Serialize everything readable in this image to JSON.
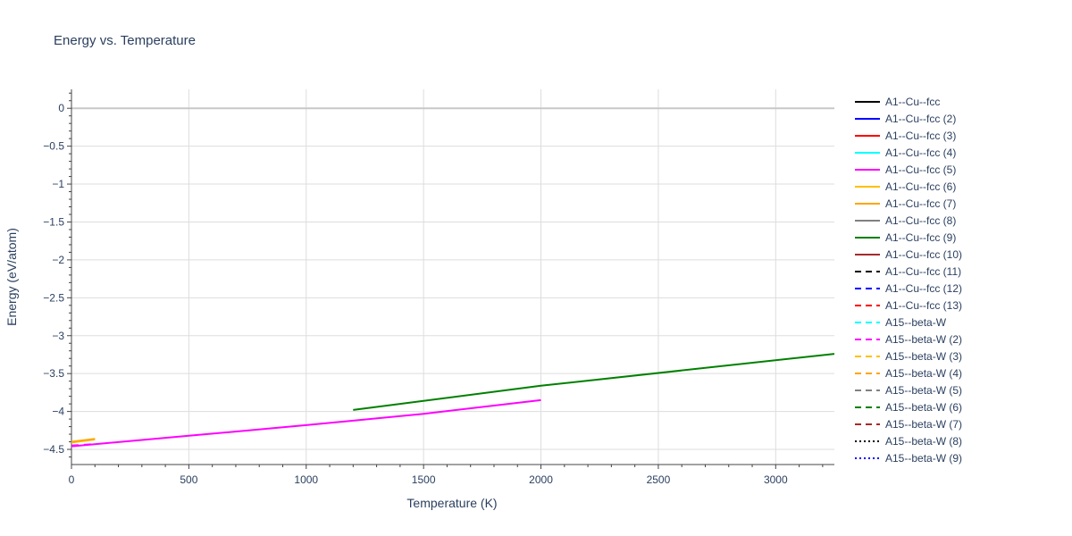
{
  "chart_data": {
    "type": "line",
    "title": "Energy vs. Temperature",
    "xlabel": "Temperature (K)",
    "ylabel": "Energy (eV/atom)",
    "xlim": [
      0,
      3250
    ],
    "ylim": [
      -4.7,
      0.25
    ],
    "x_ticks": [
      0,
      500,
      1000,
      1500,
      2000,
      2500,
      3000
    ],
    "y_ticks": [
      0,
      -0.5,
      -1,
      -1.5,
      -2,
      -2.5,
      -3,
      -3.5,
      -4,
      -4.5
    ],
    "x_tick_labels": [
      "0",
      "500",
      "1000",
      "1500",
      "2000",
      "2500",
      "3000"
    ],
    "y_tick_labels": [
      "0",
      "−0.5",
      "−1",
      "−1.5",
      "−2",
      "−2.5",
      "−3",
      "−3.5",
      "−4",
      "−4.5"
    ],
    "grid": true,
    "legend_position": "right",
    "series": [
      {
        "name": "A1--Cu--fcc",
        "color": "#000000",
        "dash": "solid",
        "x": [],
        "y": []
      },
      {
        "name": "A1--Cu--fcc (2)",
        "color": "#0000ff",
        "dash": "solid",
        "x": [],
        "y": []
      },
      {
        "name": "A1--Cu--fcc (3)",
        "color": "#ff0000",
        "dash": "solid",
        "x": [],
        "y": []
      },
      {
        "name": "A1--Cu--fcc (4)",
        "color": "#00ffff",
        "dash": "solid",
        "x": [],
        "y": []
      },
      {
        "name": "A1--Cu--fcc (5)",
        "color": "#ff00ff",
        "dash": "solid",
        "x": [
          0,
          500,
          1000,
          1500,
          2000
        ],
        "y": [
          -4.46,
          -4.32,
          -4.18,
          -4.03,
          -3.85
        ]
      },
      {
        "name": "A1--Cu--fcc (6)",
        "color": "#ffc000",
        "dash": "solid",
        "x": [
          0,
          100
        ],
        "y": [
          -4.41,
          -4.37
        ]
      },
      {
        "name": "A1--Cu--fcc (7)",
        "color": "#ffa500",
        "dash": "solid",
        "x": [
          0,
          100
        ],
        "y": [
          -4.4,
          -4.36
        ]
      },
      {
        "name": "A1--Cu--fcc (8)",
        "color": "#808080",
        "dash": "solid",
        "x": [],
        "y": []
      },
      {
        "name": "A1--Cu--fcc (9)",
        "color": "#008000",
        "dash": "solid",
        "x": [
          1200,
          2000,
          3250
        ],
        "y": [
          -3.98,
          -3.66,
          -3.24
        ]
      },
      {
        "name": "A1--Cu--fcc (10)",
        "color": "#a52a2a",
        "dash": "solid",
        "x": [],
        "y": []
      },
      {
        "name": "A1--Cu--fcc (11)",
        "color": "#000000",
        "dash": "dash",
        "x": [],
        "y": []
      },
      {
        "name": "A1--Cu--fcc (12)",
        "color": "#0000ff",
        "dash": "dash",
        "x": [],
        "y": []
      },
      {
        "name": "A1--Cu--fcc (13)",
        "color": "#ff0000",
        "dash": "dash",
        "x": [],
        "y": []
      },
      {
        "name": "A15--beta-W",
        "color": "#00ffff",
        "dash": "dash",
        "x": [],
        "y": []
      },
      {
        "name": "A15--beta-W (2)",
        "color": "#ff00ff",
        "dash": "dash",
        "x": [
          0,
          100
        ],
        "y": [
          -4.45,
          -4.43
        ]
      },
      {
        "name": "A15--beta-W (3)",
        "color": "#ffc000",
        "dash": "dash",
        "x": [],
        "y": []
      },
      {
        "name": "A15--beta-W (4)",
        "color": "#ffa500",
        "dash": "dash",
        "x": [],
        "y": []
      },
      {
        "name": "A15--beta-W (5)",
        "color": "#808080",
        "dash": "dash",
        "x": [],
        "y": []
      },
      {
        "name": "A15--beta-W (6)",
        "color": "#008000",
        "dash": "dash",
        "x": [],
        "y": []
      },
      {
        "name": "A15--beta-W (7)",
        "color": "#a52a2a",
        "dash": "dash",
        "x": [],
        "y": []
      },
      {
        "name": "A15--beta-W (8)",
        "color": "#000000",
        "dash": "dot",
        "x": [],
        "y": []
      },
      {
        "name": "A15--beta-W (9)",
        "color": "#0000ff",
        "dash": "dot",
        "x": [],
        "y": []
      }
    ]
  }
}
